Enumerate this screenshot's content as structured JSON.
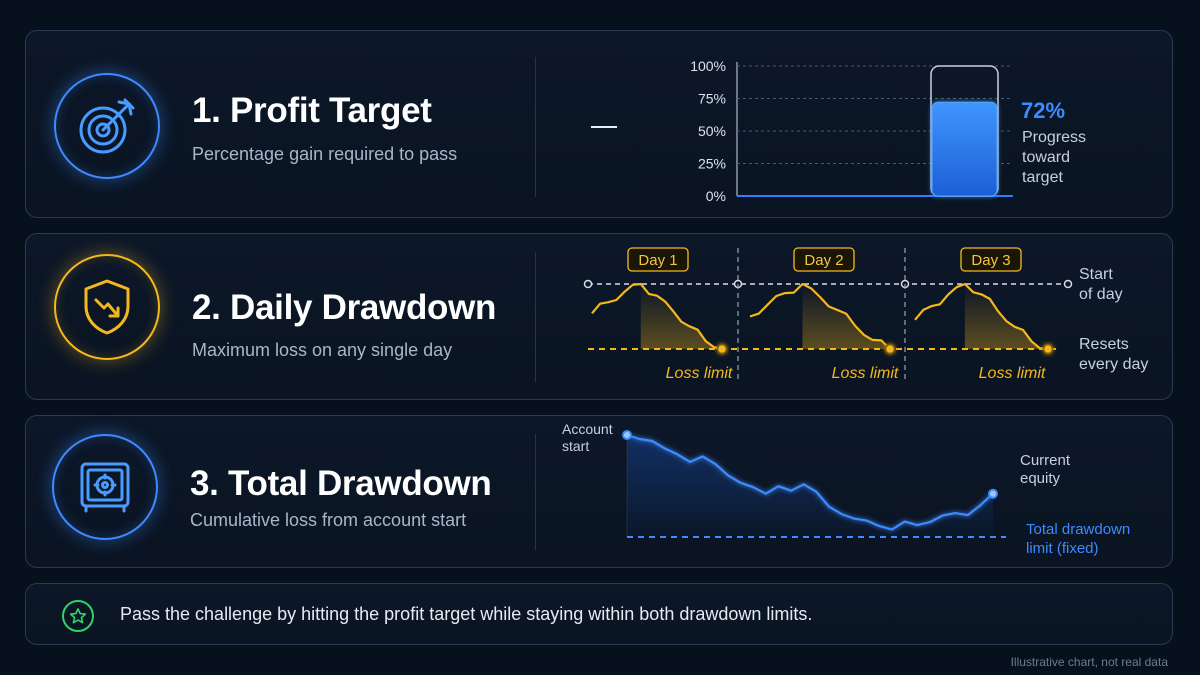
{
  "panels": {
    "profit": {
      "title": "1. Profit Target",
      "subtitle": "Percentage gain required to pass",
      "dash": "—"
    },
    "daily": {
      "title": "2. Daily Drawdown",
      "subtitle": "Maximum loss on any single day"
    },
    "total": {
      "title": "3. Total Drawdown",
      "subtitle": "Cumulative loss from account start"
    }
  },
  "footer": {
    "pass_text": "Pass the challenge by hitting the profit target while staying within both drawdown limits.",
    "note": "Illustrative chart, not real data"
  },
  "colors": {
    "blue_accent": "#3d8bff",
    "gold_accent": "#f5b81c",
    "green_accent": "#2fd36a"
  },
  "icons": {
    "profit": "target-arrow-icon",
    "daily": "shield-down-arrow-icon",
    "total": "safe-vault-icon",
    "pass": "star-icon"
  },
  "chart_data": [
    {
      "type": "bar",
      "categories": [
        ""
      ],
      "values": [
        72
      ],
      "max": 100,
      "ylim": [
        0,
        100
      ],
      "ytick_labels": [
        "0%",
        "25%",
        "50%",
        "75%",
        "100%"
      ],
      "value_label": "72%",
      "annotation": "Progress toward target",
      "grid": true
    },
    {
      "type": "line",
      "series": [
        {
          "values": [
            0.55,
            0.72,
            0.88,
            1.0,
            0.82,
            0.58,
            0.35,
            0.12,
            0.0
          ]
        },
        {
          "values": [
            0.5,
            0.68,
            0.86,
            1.0,
            0.8,
            0.6,
            0.36,
            0.14,
            0.0
          ]
        },
        {
          "values": [
            0.45,
            0.66,
            0.84,
            1.0,
            0.84,
            0.58,
            0.34,
            0.12,
            0.0
          ]
        }
      ],
      "day_labels": [
        "Day 1",
        "Day 2",
        "Day 3"
      ],
      "limit_label": "Loss limit",
      "annotations": [
        "Start of day",
        "Resets every day"
      ]
    },
    {
      "type": "line",
      "series": [
        {
          "values": [
            100,
            99.2,
            98.8,
            97.3,
            96.1,
            94.6,
            95.7,
            94.2,
            91.9,
            90.4,
            89.5,
            88.2,
            89.7,
            88.8,
            90.1,
            88.6,
            85.6,
            84.1,
            83.2,
            82.8,
            81.7,
            81.0,
            82.6,
            81.9,
            82.5,
            83.8,
            84.3,
            83.9,
            85.9,
            88.2
          ]
        }
      ],
      "start_label": "Account start",
      "end_label": "Current equity",
      "limit_label": "Total drawdown limit (fixed)",
      "limit_value": 79.5
    }
  ]
}
